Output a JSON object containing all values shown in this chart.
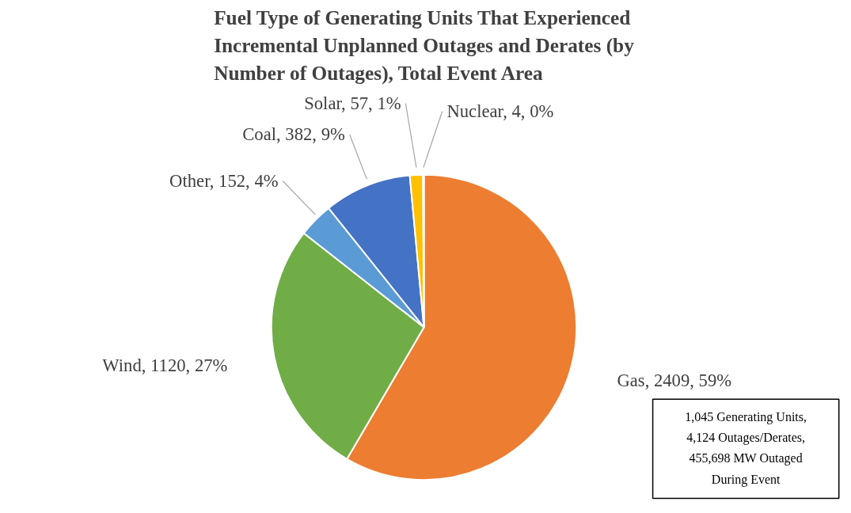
{
  "chart_data": {
    "type": "pie",
    "title": "Fuel Type of Generating Units That Experienced Incremental Unplanned Outages and Derates (by Number of Outages), Total Event Area",
    "categories": [
      "Gas",
      "Wind",
      "Other",
      "Coal",
      "Solar",
      "Nuclear"
    ],
    "values": [
      2409,
      1120,
      152,
      382,
      57,
      4
    ],
    "value_labels": [
      "2409, 59%",
      "1120, 27%",
      "152, 4%",
      "382, 9%",
      "57, 1%",
      "4, 0%"
    ],
    "colors": [
      "#ed7d31",
      "#70ad47",
      "#5b9bd5",
      "#4472c4",
      "#ffc000",
      "#264478"
    ],
    "annotations": [
      "1,045 Generating Units, 4,124 Outages/Derates, 455,698 MW Outaged During Event"
    ]
  }
}
